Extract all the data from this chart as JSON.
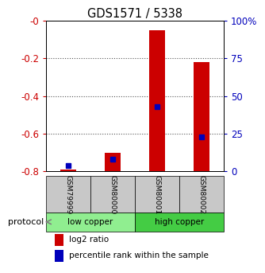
{
  "title": "GDS1571 / 5338",
  "samples": [
    "GSM79999",
    "GSM80000",
    "GSM80001",
    "GSM80002"
  ],
  "log2_ratio": [
    -0.79,
    -0.7,
    -0.05,
    -0.22
  ],
  "percentile_rank": [
    4,
    8,
    43,
    23
  ],
  "ylim_left": [
    -0.8,
    0
  ],
  "ylim_right": [
    0,
    100
  ],
  "yticks_left": [
    0,
    -0.2,
    -0.4,
    -0.6,
    -0.8
  ],
  "yticks_right": [
    0,
    25,
    50,
    75,
    100
  ],
  "ytick_labels_right": [
    "0",
    "25",
    "50",
    "75",
    "100%"
  ],
  "groups": [
    {
      "label": "low copper",
      "indices": [
        0,
        1
      ],
      "color": "#90EE90"
    },
    {
      "label": "high copper",
      "indices": [
        2,
        3
      ],
      "color": "#44CC44"
    }
  ],
  "bar_color_red": "#CC0000",
  "bar_color_blue": "#0000BB",
  "bar_width": 0.35,
  "background_label_gray": "#C8C8C8",
  "legend_red_label": "log2 ratio",
  "legend_blue_label": "percentile rank within the sample",
  "protocol_label": "protocol",
  "left_axis_color": "#CC0000",
  "right_axis_color": "#0000BB",
  "grid_color": "#555555"
}
